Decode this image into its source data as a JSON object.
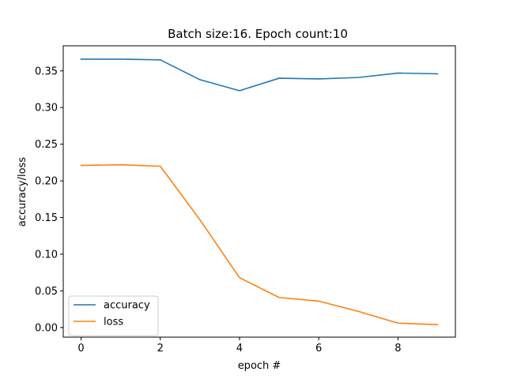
{
  "chart_data": {
    "type": "line",
    "title": "Batch size:16. Epoch count:10",
    "xlabel": "epoch #",
    "ylabel": "accuracy/loss",
    "xlim": [
      -0.45,
      9.45
    ],
    "ylim": [
      -0.0131,
      0.3842
    ],
    "xticks": [
      0,
      2,
      4,
      6,
      8
    ],
    "yticks": [
      0.0,
      0.05,
      0.1,
      0.15,
      0.2,
      0.25,
      0.3,
      0.35
    ],
    "ytick_labels": [
      "0.00",
      "0.05",
      "0.10",
      "0.15",
      "0.20",
      "0.25",
      "0.30",
      "0.35"
    ],
    "grid": false,
    "legend_position": "lower-left",
    "x": [
      0,
      1,
      2,
      3,
      4,
      5,
      6,
      7,
      8,
      9
    ],
    "series": [
      {
        "name": "accuracy",
        "color": "#1f77b4",
        "values": [
          0.366,
          0.366,
          0.365,
          0.338,
          0.323,
          0.34,
          0.339,
          0.341,
          0.347,
          0.346
        ]
      },
      {
        "name": "loss",
        "color": "#ff7f0e",
        "values": [
          0.221,
          0.222,
          0.22,
          0.147,
          0.068,
          0.041,
          0.036,
          0.022,
          0.006,
          0.004
        ]
      }
    ]
  }
}
